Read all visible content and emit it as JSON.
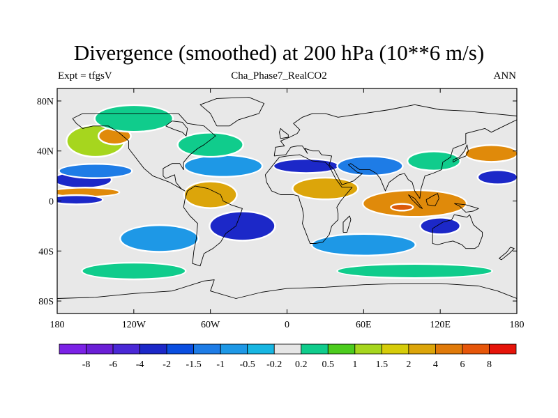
{
  "header": {
    "title": "Divergence (smoothed) at 200 hPa (10**6 m/s)",
    "left_label": "Expt = tfgsV",
    "center_label": "Cha_Phase7_RealCO2",
    "right_label": "ANN"
  },
  "map": {
    "projection": "cylindrical equidistant",
    "lat_ticks": [
      "80N",
      "40N",
      "0",
      "40S",
      "80S"
    ],
    "lon_ticks": [
      "180",
      "120W",
      "60W",
      "0",
      "60E",
      "120E",
      "180"
    ],
    "lat_tick_values": [
      80,
      40,
      0,
      -40,
      -80
    ],
    "lon_tick_values": [
      -180,
      -120,
      -60,
      0,
      60,
      120,
      180
    ],
    "lat_range": [
      -90,
      90
    ],
    "lon_range": [
      -180,
      180
    ],
    "background_color": "#e8e8e8",
    "zero_contour_color": "#ffffff",
    "coast_color": "#000000"
  },
  "colorbar": {
    "colors": [
      "#7b22e6",
      "#6a1fd6",
      "#4a28d6",
      "#1c28c8",
      "#0a4ee0",
      "#1e7ce6",
      "#1e98e6",
      "#18b6e2",
      "#e6e6e6",
      "#10cc8c",
      "#4ccc1e",
      "#a6d61e",
      "#d6cc0a",
      "#dca50a",
      "#e07a0a",
      "#e6560a",
      "#e6140a"
    ],
    "labels": [
      "-8",
      "-6",
      "-4",
      "-2",
      "-1.5",
      "-1",
      "-0.5",
      "-0.2",
      "0.2",
      "0.5",
      "1",
      "1.5",
      "2",
      "4",
      "6",
      "8"
    ]
  },
  "regions": [
    {
      "fill": "#1c28c8",
      "lon": -160,
      "lat": 17,
      "rx": 22,
      "ry": 6
    },
    {
      "fill": "#e08a0a",
      "lon": -158,
      "lat": 7,
      "rx": 26,
      "ry": 3
    },
    {
      "fill": "#1c28c8",
      "lon": -165,
      "lat": 1,
      "rx": 20,
      "ry": 3
    },
    {
      "fill": "#a6d61e",
      "lon": -150,
      "lat": 48,
      "rx": 22,
      "ry": 12
    },
    {
      "fill": "#e08a0a",
      "lon": -135,
      "lat": 52,
      "rx": 12,
      "ry": 6
    },
    {
      "fill": "#10cc8c",
      "lon": -120,
      "lat": 66,
      "rx": 30,
      "ry": 10
    },
    {
      "fill": "#1e7ce6",
      "lon": -150,
      "lat": 24,
      "rx": 28,
      "ry": 5
    },
    {
      "fill": "#1e98e6",
      "lon": -50,
      "lat": 28,
      "rx": 30,
      "ry": 8
    },
    {
      "fill": "#10cc8c",
      "lon": -60,
      "lat": 45,
      "rx": 25,
      "ry": 9
    },
    {
      "fill": "#dca50a",
      "lon": -60,
      "lat": 5,
      "rx": 20,
      "ry": 10
    },
    {
      "fill": "#1c28c8",
      "lon": -35,
      "lat": -20,
      "rx": 25,
      "ry": 11
    },
    {
      "fill": "#1e98e6",
      "lon": -100,
      "lat": -30,
      "rx": 30,
      "ry": 10
    },
    {
      "fill": "#dca50a",
      "lon": 30,
      "lat": 10,
      "rx": 25,
      "ry": 8
    },
    {
      "fill": "#e08a0a",
      "lon": 100,
      "lat": -2,
      "rx": 40,
      "ry": 10
    },
    {
      "fill": "#dc5a0a",
      "lon": 90,
      "lat": -5,
      "rx": 8,
      "ry": 2
    },
    {
      "fill": "#1c28c8",
      "lon": 15,
      "lat": 28,
      "rx": 25,
      "ry": 5
    },
    {
      "fill": "#1e7ce6",
      "lon": 65,
      "lat": 28,
      "rx": 25,
      "ry": 7
    },
    {
      "fill": "#10cc8c",
      "lon": 115,
      "lat": 32,
      "rx": 20,
      "ry": 7
    },
    {
      "fill": "#e08a0a",
      "lon": 160,
      "lat": 38,
      "rx": 20,
      "ry": 6
    },
    {
      "fill": "#1c28c8",
      "lon": 165,
      "lat": 19,
      "rx": 15,
      "ry": 5
    },
    {
      "fill": "#1e98e6",
      "lon": 60,
      "lat": -35,
      "rx": 40,
      "ry": 8
    },
    {
      "fill": "#1c28c8",
      "lon": 120,
      "lat": -20,
      "rx": 15,
      "ry": 6
    },
    {
      "fill": "#10cc8c",
      "lon": -120,
      "lat": -56,
      "rx": 40,
      "ry": 6
    },
    {
      "fill": "#10cc8c",
      "lon": 100,
      "lat": -56,
      "rx": 60,
      "ry": 5
    }
  ],
  "coastlines": [
    {
      "name": "north-america",
      "pts": [
        [
          -168,
          66
        ],
        [
          -160,
          70
        ],
        [
          -140,
          70
        ],
        [
          -120,
          70
        ],
        [
          -100,
          70
        ],
        [
          -85,
          70
        ],
        [
          -78,
          62
        ],
        [
          -65,
          60
        ],
        [
          -56,
          52
        ],
        [
          -65,
          45
        ],
        [
          -70,
          42
        ],
        [
          -76,
          37
        ],
        [
          -81,
          31
        ],
        [
          -81,
          25
        ],
        [
          -84,
          30
        ],
        [
          -90,
          30
        ],
        [
          -97,
          26
        ],
        [
          -97,
          20
        ],
        [
          -95,
          18
        ],
        [
          -88,
          21
        ],
        [
          -87,
          15
        ],
        [
          -83,
          10
        ],
        [
          -80,
          8
        ],
        [
          -85,
          11
        ],
        [
          -92,
          15
        ],
        [
          -105,
          20
        ],
        [
          -112,
          26
        ],
        [
          -118,
          34
        ],
        [
          -124,
          42
        ],
        [
          -124,
          48
        ],
        [
          -132,
          55
        ],
        [
          -140,
          60
        ],
        [
          -152,
          60
        ],
        [
          -160,
          58
        ],
        [
          -165,
          62
        ],
        [
          -168,
          66
        ]
      ]
    },
    {
      "name": "south-america",
      "pts": [
        [
          -78,
          8
        ],
        [
          -72,
          12
        ],
        [
          -62,
          10
        ],
        [
          -52,
          5
        ],
        [
          -50,
          0
        ],
        [
          -44,
          -3
        ],
        [
          -35,
          -6
        ],
        [
          -37,
          -12
        ],
        [
          -40,
          -20
        ],
        [
          -48,
          -26
        ],
        [
          -52,
          -33
        ],
        [
          -58,
          -38
        ],
        [
          -65,
          -42
        ],
        [
          -68,
          -52
        ],
        [
          -74,
          -50
        ],
        [
          -73,
          -40
        ],
        [
          -71,
          -30
        ],
        [
          -70,
          -18
        ],
        [
          -76,
          -12
        ],
        [
          -81,
          -5
        ],
        [
          -80,
          1
        ],
        [
          -78,
          8
        ]
      ]
    },
    {
      "name": "greenland",
      "pts": [
        [
          -55,
          60
        ],
        [
          -45,
          60
        ],
        [
          -38,
          65
        ],
        [
          -22,
          70
        ],
        [
          -18,
          78
        ],
        [
          -30,
          83
        ],
        [
          -55,
          82
        ],
        [
          -68,
          77
        ],
        [
          -60,
          70
        ],
        [
          -55,
          60
        ]
      ]
    },
    {
      "name": "africa",
      "pts": [
        [
          -17,
          21
        ],
        [
          -16,
          15
        ],
        [
          -12,
          8
        ],
        [
          -5,
          5
        ],
        [
          5,
          5
        ],
        [
          9,
          4
        ],
        [
          10,
          0
        ],
        [
          12,
          -6
        ],
        [
          13,
          -12
        ],
        [
          12,
          -18
        ],
        [
          18,
          -34
        ],
        [
          22,
          -34
        ],
        [
          28,
          -33
        ],
        [
          33,
          -27
        ],
        [
          35,
          -20
        ],
        [
          40,
          -15
        ],
        [
          40,
          -10
        ],
        [
          39,
          -5
        ],
        [
          42,
          0
        ],
        [
          51,
          11
        ],
        [
          43,
          11
        ],
        [
          38,
          18
        ],
        [
          33,
          28
        ],
        [
          30,
          31
        ],
        [
          20,
          32
        ],
        [
          10,
          37
        ],
        [
          0,
          36
        ],
        [
          -6,
          35
        ],
        [
          -10,
          30
        ],
        [
          -17,
          21
        ]
      ]
    },
    {
      "name": "eurasia",
      "pts": [
        [
          -10,
          36
        ],
        [
          -9,
          43
        ],
        [
          -2,
          44
        ],
        [
          -5,
          48
        ],
        [
          2,
          51
        ],
        [
          8,
          54
        ],
        [
          10,
          57
        ],
        [
          5,
          62
        ],
        [
          12,
          67
        ],
        [
          20,
          70
        ],
        [
          30,
          70
        ],
        [
          40,
          67
        ],
        [
          60,
          70
        ],
        [
          80,
          73
        ],
        [
          100,
          77
        ],
        [
          120,
          73
        ],
        [
          140,
          72
        ],
        [
          160,
          70
        ],
        [
          180,
          68
        ],
        [
          180,
          65
        ],
        [
          170,
          60
        ],
        [
          160,
          55
        ],
        [
          155,
          58
        ],
        [
          140,
          54
        ],
        [
          140,
          46
        ],
        [
          130,
          42
        ],
        [
          128,
          35
        ],
        [
          122,
          31
        ],
        [
          121,
          25
        ],
        [
          114,
          22
        ],
        [
          108,
          20
        ],
        [
          105,
          10
        ],
        [
          104,
          2
        ],
        [
          100,
          8
        ],
        [
          98,
          15
        ],
        [
          95,
          17
        ],
        [
          92,
          22
        ],
        [
          88,
          21
        ],
        [
          80,
          15
        ],
        [
          77,
          8
        ],
        [
          73,
          18
        ],
        [
          70,
          22
        ],
        [
          65,
          25
        ],
        [
          57,
          25
        ],
        [
          50,
          30
        ],
        [
          48,
          29
        ],
        [
          55,
          23
        ],
        [
          59,
          22
        ],
        [
          52,
          16
        ],
        [
          43,
          13
        ],
        [
          37,
          25
        ],
        [
          33,
          29
        ],
        [
          34,
          32
        ],
        [
          35,
          36
        ],
        [
          27,
          37
        ],
        [
          25,
          40
        ],
        [
          20,
          40
        ],
        [
          14,
          42
        ],
        [
          16,
          38
        ],
        [
          12,
          44
        ],
        [
          8,
          44
        ],
        [
          3,
          43
        ],
        [
          -1,
          37
        ],
        [
          -10,
          36
        ]
      ]
    },
    {
      "name": "australia",
      "pts": [
        [
          114,
          -22
        ],
        [
          114,
          -34
        ],
        [
          118,
          -35
        ],
        [
          125,
          -33
        ],
        [
          130,
          -32
        ],
        [
          137,
          -35
        ],
        [
          140,
          -38
        ],
        [
          147,
          -38
        ],
        [
          150,
          -36
        ],
        [
          153,
          -28
        ],
        [
          153,
          -25
        ],
        [
          146,
          -19
        ],
        [
          143,
          -11
        ],
        [
          141,
          -13
        ],
        [
          136,
          -12
        ],
        [
          131,
          -11
        ],
        [
          129,
          -15
        ],
        [
          122,
          -17
        ],
        [
          114,
          -22
        ]
      ]
    },
    {
      "name": "antarctica",
      "pts": [
        [
          -180,
          -78
        ],
        [
          -150,
          -77
        ],
        [
          -120,
          -74
        ],
        [
          -90,
          -72
        ],
        [
          -65,
          -64
        ],
        [
          -57,
          -63
        ],
        [
          -60,
          -72
        ],
        [
          -40,
          -78
        ],
        [
          -20,
          -73
        ],
        [
          0,
          -70
        ],
        [
          30,
          -69
        ],
        [
          60,
          -67
        ],
        [
          90,
          -66
        ],
        [
          120,
          -66
        ],
        [
          150,
          -68
        ],
        [
          165,
          -72
        ],
        [
          180,
          -78
        ]
      ]
    },
    {
      "name": "madagascar",
      "pts": [
        [
          44,
          -25
        ],
        [
          47,
          -25
        ],
        [
          50,
          -15
        ],
        [
          49,
          -12
        ],
        [
          44,
          -17
        ],
        [
          44,
          -25
        ]
      ]
    },
    {
      "name": "japan",
      "pts": [
        [
          130,
          31
        ],
        [
          135,
          34
        ],
        [
          140,
          36
        ],
        [
          142,
          40
        ],
        [
          141,
          45
        ],
        [
          139,
          40
        ],
        [
          135,
          35
        ],
        [
          130,
          33
        ],
        [
          130,
          31
        ]
      ]
    },
    {
      "name": "britain",
      "pts": [
        [
          -5,
          50
        ],
        [
          1,
          51
        ],
        [
          1,
          53
        ],
        [
          -3,
          56
        ],
        [
          -5,
          58
        ],
        [
          -6,
          55
        ],
        [
          -5,
          50
        ]
      ]
    },
    {
      "name": "new-guinea",
      "pts": [
        [
          131,
          -2
        ],
        [
          140,
          -3
        ],
        [
          150,
          -6
        ],
        [
          146,
          -8
        ],
        [
          140,
          -9
        ],
        [
          135,
          -4
        ],
        [
          131,
          -2
        ]
      ]
    },
    {
      "name": "borneo",
      "pts": [
        [
          109,
          1
        ],
        [
          114,
          4
        ],
        [
          118,
          6
        ],
        [
          119,
          2
        ],
        [
          116,
          -4
        ],
        [
          110,
          -3
        ],
        [
          109,
          1
        ]
      ]
    },
    {
      "name": "sumatra",
      "pts": [
        [
          95,
          5
        ],
        [
          100,
          2
        ],
        [
          106,
          -6
        ],
        [
          104,
          -5
        ],
        [
          98,
          1
        ],
        [
          95,
          5
        ]
      ]
    },
    {
      "name": "new-zealand",
      "pts": [
        [
          166,
          -46
        ],
        [
          172,
          -41
        ],
        [
          175,
          -37
        ],
        [
          178,
          -38
        ],
        [
          174,
          -42
        ],
        [
          168,
          -47
        ],
        [
          166,
          -46
        ]
      ]
    },
    {
      "name": "hudson-bay",
      "pts": [
        [
          -95,
          60
        ],
        [
          -88,
          57
        ],
        [
          -82,
          55
        ],
        [
          -79,
          52
        ],
        [
          -78,
          58
        ],
        [
          -82,
          63
        ],
        [
          -90,
          64
        ],
        [
          -95,
          60
        ]
      ]
    }
  ]
}
